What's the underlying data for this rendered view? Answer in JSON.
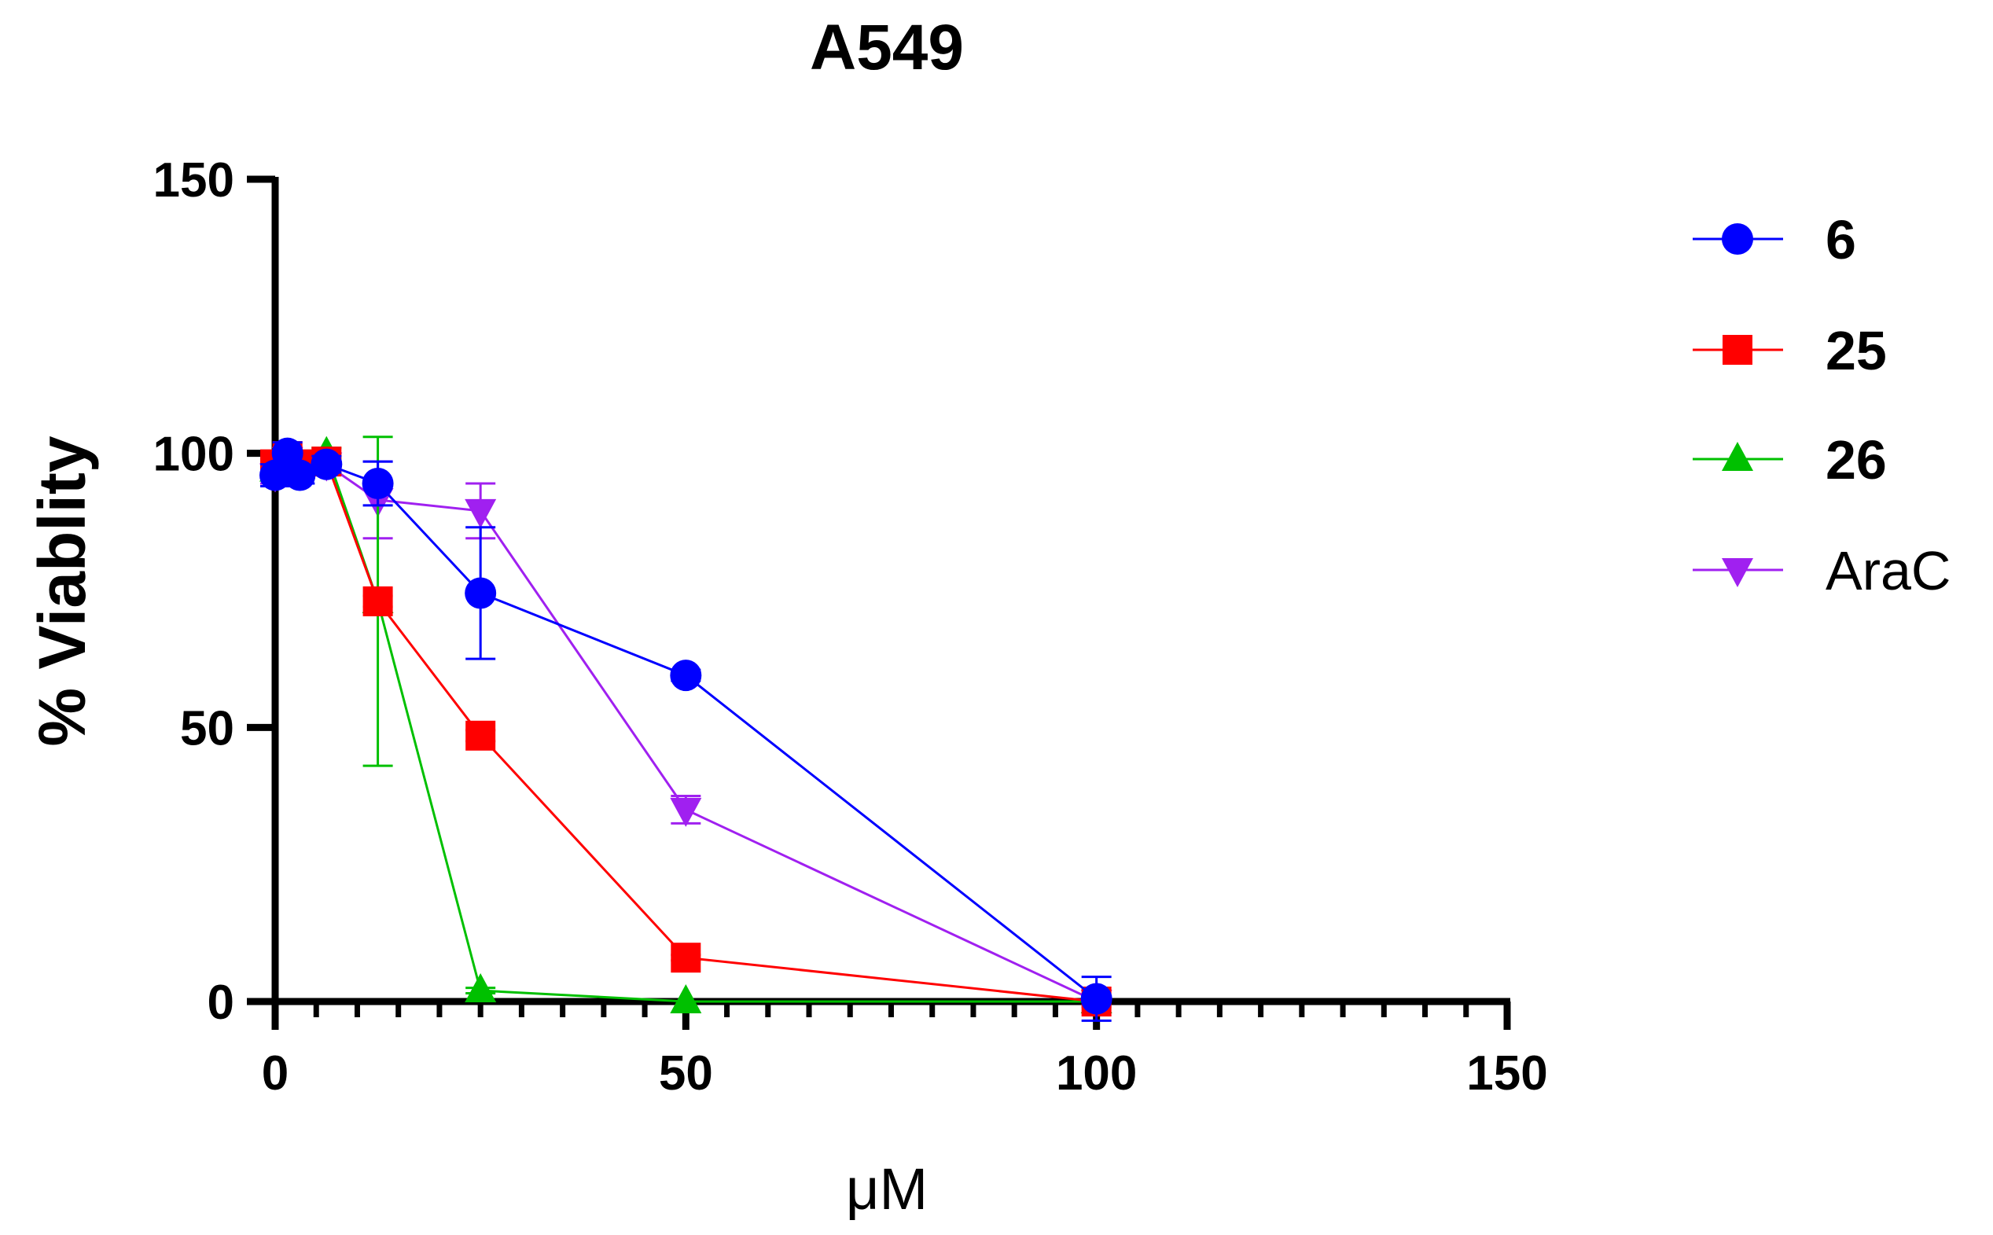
{
  "chart_data": {
    "type": "line",
    "title": "A549",
    "xlabel": "μM",
    "ylabel": "% Viablity",
    "xlim": [
      0,
      150
    ],
    "ylim": [
      0,
      150
    ],
    "x_ticks": [
      "0",
      "50",
      "100",
      "150"
    ],
    "y_ticks": [
      "0",
      "50",
      "100",
      "150"
    ],
    "x_minor_step": 5,
    "grid": false,
    "legend_position": "top-right",
    "series": [
      {
        "name": "6",
        "color": "#0000FF",
        "marker": "circle",
        "bold_label": true,
        "x": [
          0,
          1.5,
          3,
          6.25,
          12.5,
          25,
          50,
          100
        ],
        "y": [
          96,
          100,
          96,
          98,
          94.5,
          74.5,
          59.5,
          0.5
        ],
        "err": [
          2,
          2,
          1.5,
          1.5,
          4,
          12,
          1,
          4
        ]
      },
      {
        "name": "25",
        "color": "#FF0000",
        "marker": "square",
        "bold_label": true,
        "x": [
          0,
          1.5,
          3,
          6.25,
          12.5,
          25,
          50,
          100
        ],
        "y": [
          98,
          99.5,
          98,
          98.5,
          73,
          48.5,
          8,
          0
        ],
        "err": [
          1.5,
          1.5,
          1,
          1,
          1,
          1,
          0.5,
          0.5
        ]
      },
      {
        "name": "26",
        "color": "#00C000",
        "marker": "triangle-up",
        "bold_label": true,
        "x": [
          0,
          1.5,
          3,
          6.25,
          12.5,
          25,
          50,
          100
        ],
        "y": [
          97,
          99,
          98.5,
          100,
          73,
          2,
          0,
          0
        ],
        "err": [
          1,
          1,
          1,
          1,
          30,
          0.5,
          0,
          0
        ]
      },
      {
        "name": "AraC",
        "color": "#A020F0",
        "marker": "triangle-down",
        "bold_label": false,
        "x": [
          0,
          1.5,
          3,
          6.25,
          12.5,
          25,
          50,
          100
        ],
        "y": [
          96,
          99,
          97,
          98,
          91.5,
          89.5,
          35,
          0
        ],
        "err": [
          1.5,
          1.5,
          1.5,
          1.5,
          7,
          5,
          2.5,
          1
        ]
      }
    ]
  }
}
